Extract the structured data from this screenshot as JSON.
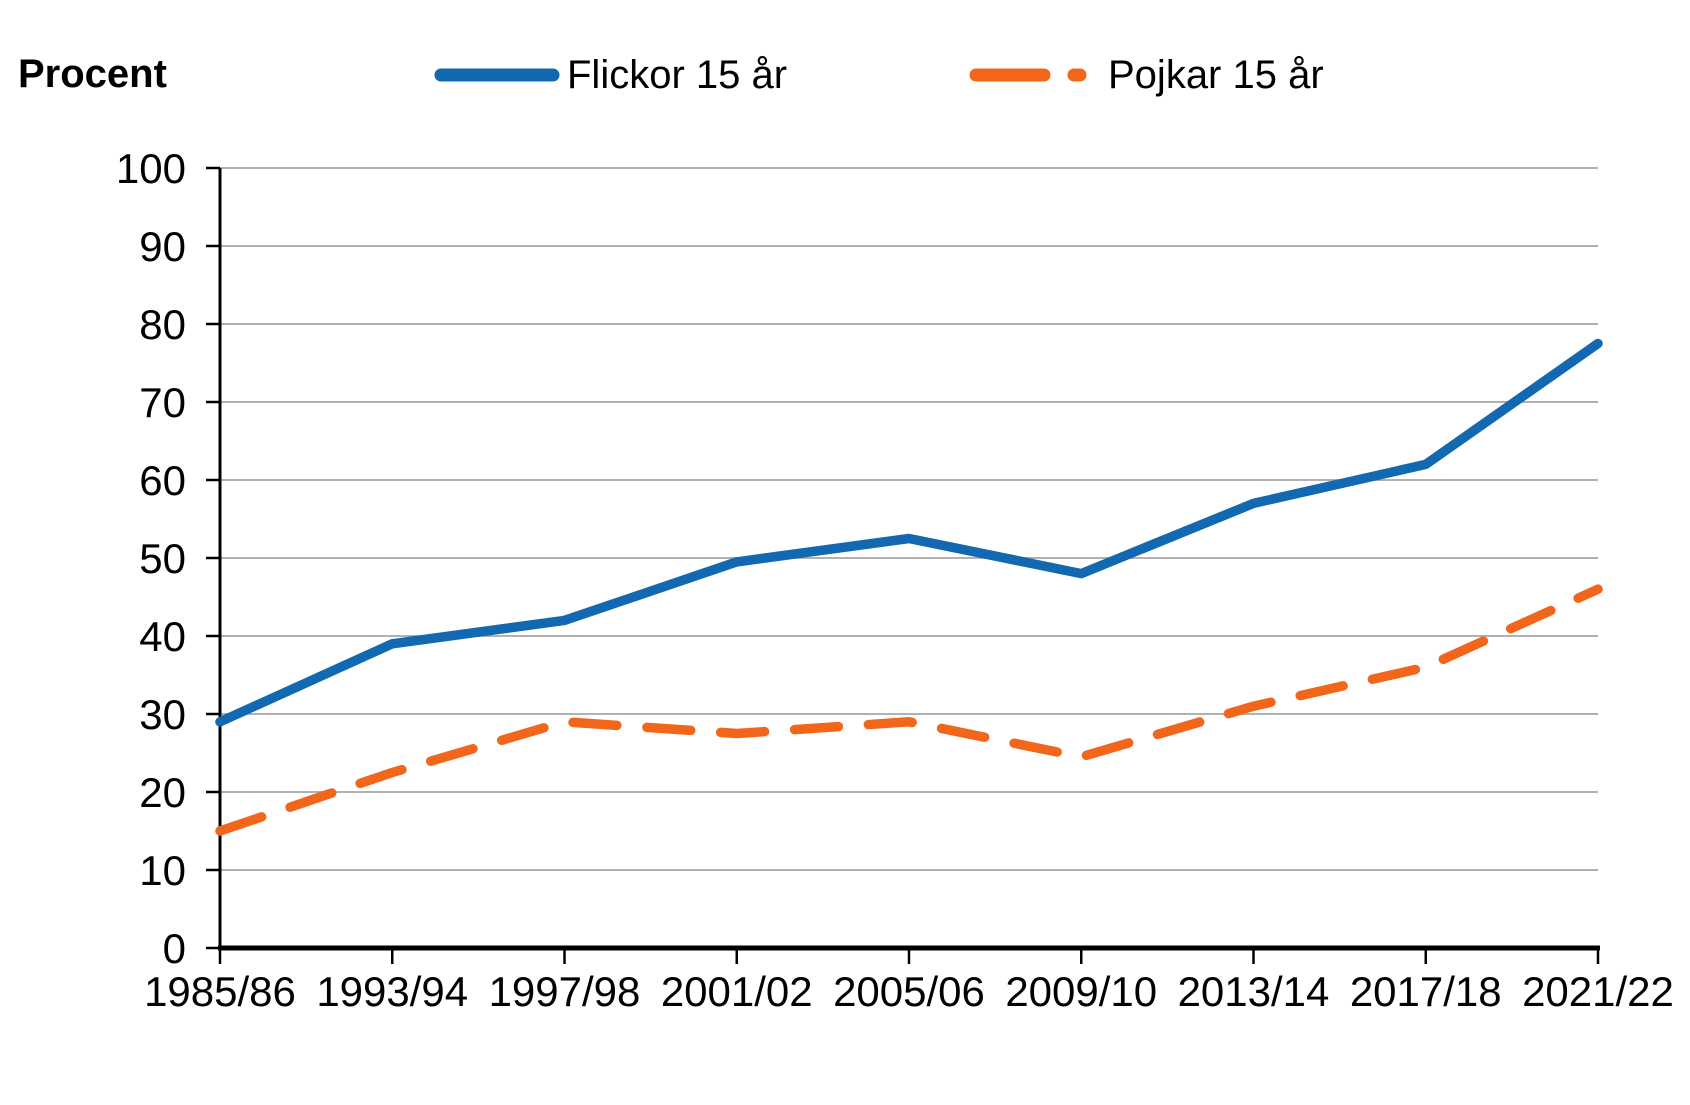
{
  "chart_data": {
    "type": "line",
    "y_axis_title": "Procent",
    "categories": [
      "1985/86",
      "1993/94",
      "1997/98",
      "2001/02",
      "2005/06",
      "2009/10",
      "2013/14",
      "2017/18",
      "2021/22"
    ],
    "series": [
      {
        "name": "Flickor 15 år",
        "style": "solid",
        "color": "#1268b1",
        "values": [
          29,
          39,
          42,
          49.5,
          52.5,
          48,
          57,
          62,
          77.5
        ]
      },
      {
        "name": "Pojkar 15 år",
        "style": "dashed",
        "color": "#f2661c",
        "values": [
          15,
          22.5,
          29,
          27.5,
          29,
          24.5,
          31,
          36,
          46
        ]
      }
    ],
    "ylim": [
      0,
      100
    ],
    "y_ticks": [
      0,
      10,
      20,
      30,
      40,
      50,
      60,
      70,
      80,
      90,
      100
    ],
    "grid": "horizontal",
    "legend_position": "top",
    "axis_color": "#000000",
    "gridline_color": "#a6a6a6"
  }
}
